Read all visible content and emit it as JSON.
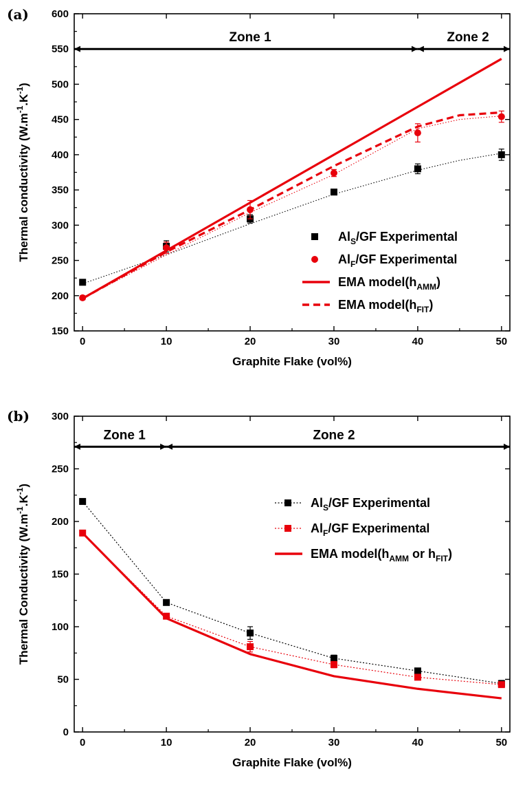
{
  "colors": {
    "black_series": "#000000",
    "red_series": "#e8000b"
  },
  "chart_data": [
    {
      "panel_label": "(a)",
      "type": "line",
      "xlabel": "Graphite Flake (vol%)",
      "ylabel": {
        "text": "Thermal conductivity (W.m",
        "exp1": "-1",
        "mid": ".K",
        "exp2": "-1",
        "end": ")"
      },
      "xlim": [
        -1,
        51
      ],
      "ylim": [
        150,
        600
      ],
      "xticks": [
        0,
        10,
        20,
        30,
        40,
        50
      ],
      "yticks": [
        150,
        200,
        250,
        300,
        350,
        400,
        450,
        500,
        550,
        600
      ],
      "zones": {
        "y": 550,
        "arrows": [
          [
            0,
            40
          ],
          [
            40,
            50
          ]
        ],
        "labels": [
          {
            "text": "Zone 1",
            "x": 20
          },
          {
            "text": "Zone 2",
            "x": 46
          }
        ]
      },
      "series": [
        {
          "name": "AlS/GF Experimental",
          "legend": {
            "pre": "Al",
            "sub": "S",
            "post": "/GF Experimental"
          },
          "kind": "marker",
          "marker": "square",
          "color": "#000000",
          "x": [
            0,
            10,
            20,
            30,
            40,
            50
          ],
          "y": [
            219,
            270,
            309,
            347,
            380,
            400
          ],
          "err": [
            3,
            8,
            6,
            3,
            7,
            8
          ]
        },
        {
          "name": "AlF/GF Experimental",
          "legend": {
            "pre": "Al",
            "sub": "F",
            "post": "/GF Experimental"
          },
          "kind": "marker",
          "marker": "circle",
          "color": "#e8000b",
          "x": [
            0,
            10,
            20,
            30,
            40,
            50
          ],
          "y": [
            197,
            268,
            322,
            374,
            431,
            454
          ],
          "err": [
            3,
            8,
            13,
            5,
            13,
            8
          ]
        },
        {
          "name": "EMA model(hAMM)",
          "legend": {
            "pre": "EMA model(h",
            "sub": "AMM",
            "post": ")"
          },
          "kind": "line",
          "dash": "solid",
          "color": "#e8000b",
          "x": [
            0,
            50
          ],
          "y": [
            196,
            536
          ]
        },
        {
          "name": "EMA model(hFIT)",
          "legend": {
            "pre": "EMA model(h",
            "sub": "FIT",
            "post": ")"
          },
          "kind": "line",
          "dash": "dashed",
          "color": "#e8000b",
          "x": [
            0,
            10,
            20,
            30,
            40,
            45,
            50
          ],
          "y": [
            196,
            262,
            322,
            384,
            440,
            456,
            460
          ]
        }
      ],
      "fit_curves": [
        {
          "color": "#000000",
          "x": [
            0,
            10,
            20,
            30,
            40,
            45,
            50
          ],
          "y": [
            217,
            258,
            302,
            344,
            378,
            392,
            402
          ]
        },
        {
          "color": "#e8000b",
          "x": [
            0,
            10,
            20,
            30,
            40,
            45,
            50
          ],
          "y": [
            196,
            258,
            318,
            372,
            437,
            450,
            455
          ]
        }
      ]
    },
    {
      "panel_label": "(b)",
      "type": "line",
      "xlabel": "Graphite Flake (vol%)",
      "ylabel": {
        "text": "Thermal Conductivity (W.m",
        "exp1": "-1",
        "mid": ".K",
        "exp2": "-1",
        "end": ")"
      },
      "xlim": [
        -1,
        51
      ],
      "ylim": [
        0,
        300
      ],
      "xticks": [
        0,
        10,
        20,
        30,
        40,
        50
      ],
      "yticks": [
        0,
        50,
        100,
        150,
        200,
        250,
        300
      ],
      "zones": {
        "y": 271,
        "arrows": [
          [
            0,
            10
          ],
          [
            10,
            50
          ]
        ],
        "labels": [
          {
            "text": "Zone 1",
            "x": 5
          },
          {
            "text": "Zone 2",
            "x": 30
          }
        ]
      },
      "series": [
        {
          "name": "AlS/GF Experimental",
          "legend": {
            "pre": "Al",
            "sub": "S",
            "post": "/GF Experimental"
          },
          "kind": "marker_line",
          "marker": "square",
          "color": "#000000",
          "x": [
            0,
            10,
            20,
            30,
            40,
            50
          ],
          "y": [
            219,
            123,
            94,
            70,
            58,
            46
          ],
          "err": [
            1,
            2,
            6,
            3,
            2,
            3
          ]
        },
        {
          "name": "AlF/GF Experimental",
          "legend": {
            "pre": "Al",
            "sub": "F",
            "post": "/GF Experimental"
          },
          "kind": "marker_line",
          "marker": "square",
          "color": "#e8000b",
          "x": [
            0,
            10,
            20,
            30,
            40,
            50
          ],
          "y": [
            189,
            110,
            81,
            64,
            52,
            45
          ],
          "err": [
            1,
            2,
            5,
            3,
            2,
            2
          ]
        },
        {
          "name": "EMA model(hAMM or hFIT)",
          "legend": {
            "pre": "EMA model(h",
            "sub": "AMM",
            "mid": " or h",
            "sub2": "FIT",
            "post": ")"
          },
          "kind": "line",
          "dash": "solid",
          "color": "#e8000b",
          "x": [
            0,
            10,
            20,
            30,
            40,
            50
          ],
          "y": [
            189,
            108,
            74,
            53,
            41,
            32
          ]
        }
      ]
    }
  ]
}
